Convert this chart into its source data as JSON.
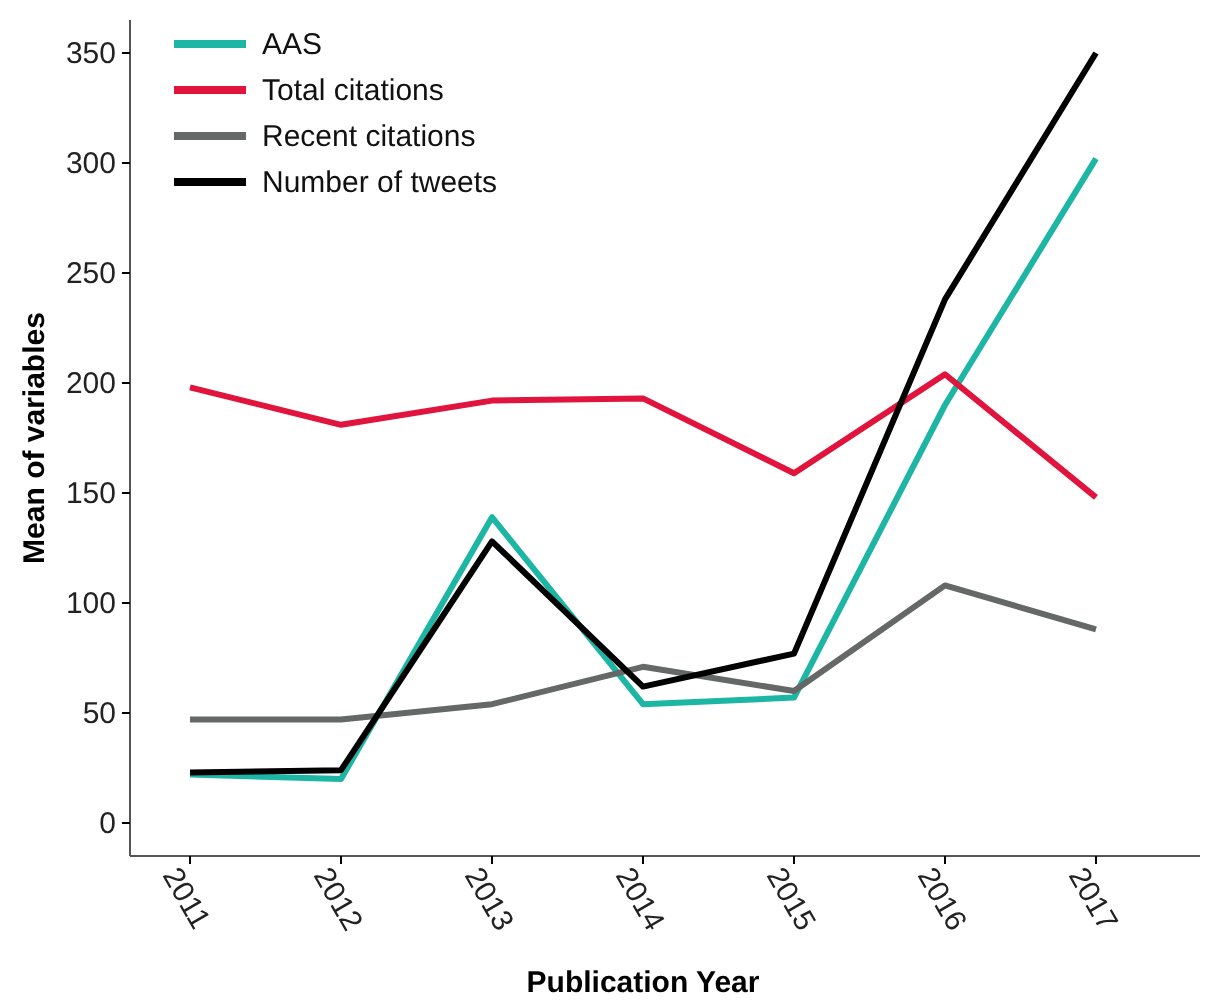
{
  "chart_data": {
    "type": "line",
    "xlabel": "Publication Year",
    "ylabel": "Mean of variables",
    "categories": [
      "2011",
      "2012",
      "2013",
      "2014",
      "2015",
      "2016",
      "2017"
    ],
    "ylim": [
      -15,
      365
    ],
    "yticks": [
      0,
      50,
      100,
      150,
      200,
      250,
      300,
      350
    ],
    "grid": false,
    "legend": "top left",
    "line_style": "solid",
    "marker": "none",
    "series": [
      {
        "name": "AAS",
        "color": "#1db5a3",
        "values": [
          22,
          20,
          139,
          54,
          57,
          190,
          302
        ]
      },
      {
        "name": "Total citations",
        "color": "#e0143c",
        "values": [
          198,
          181,
          192,
          193,
          159,
          204,
          148
        ]
      },
      {
        "name": "Recent citations",
        "color": "#646866",
        "values": [
          47,
          47,
          54,
          71,
          60,
          108,
          88
        ]
      },
      {
        "name": "Number of tweets",
        "color": "#000000",
        "values": [
          23,
          24,
          128,
          62,
          77,
          238,
          350
        ]
      }
    ]
  }
}
